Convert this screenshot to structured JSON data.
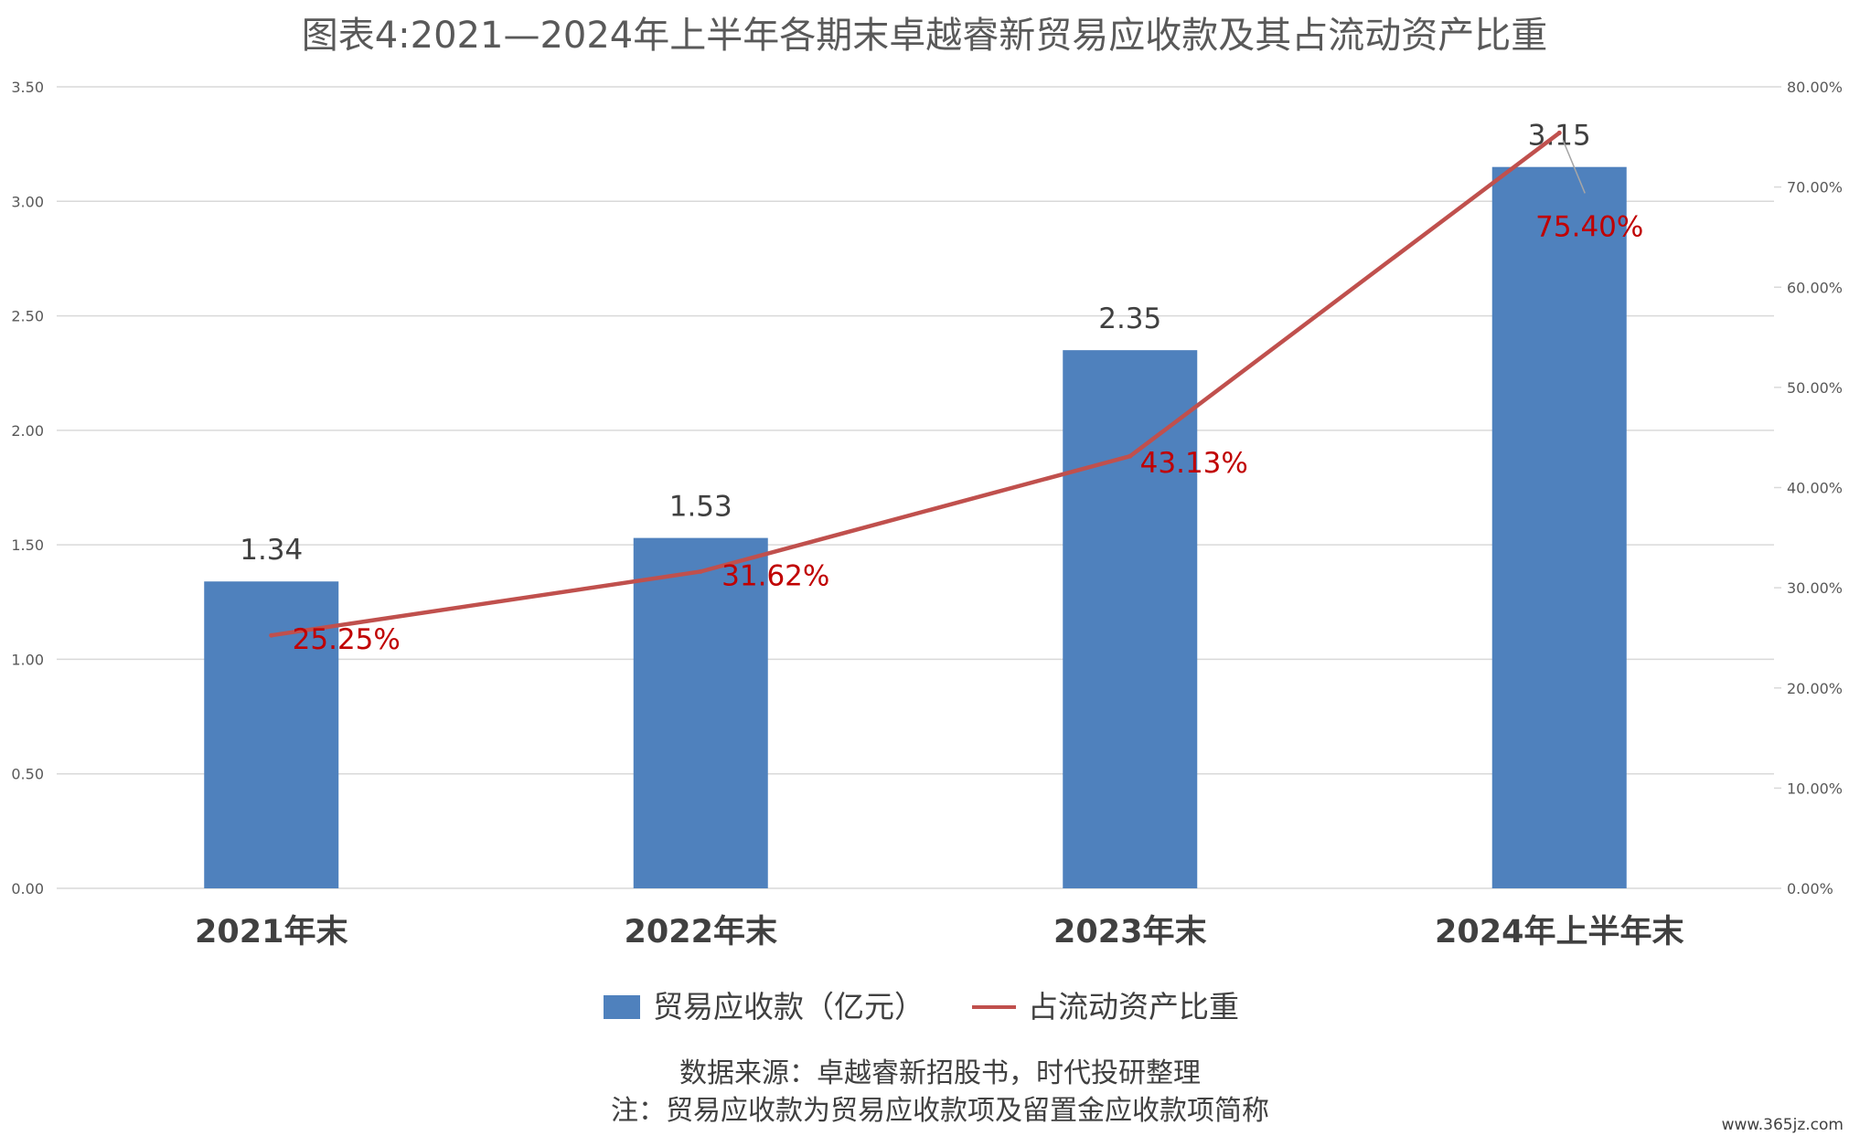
{
  "chart_data": {
    "type": "bar+line",
    "title": "图表4:2021—2024年上半年各期末卓越睿新贸易应收款及其占流动资产比重",
    "categories": [
      "2021年末",
      "2022年末",
      "2023年末",
      "2024年上半年末"
    ],
    "series": [
      {
        "name": "贸易应收款（亿元）",
        "type": "bar",
        "axis": "left",
        "color": "#4f81bd",
        "values": [
          1.34,
          1.53,
          2.35,
          3.15
        ],
        "labels": [
          "1.34",
          "1.53",
          "2.35",
          "3.15"
        ]
      },
      {
        "name": "占流动资产比重",
        "type": "line",
        "axis": "right",
        "color": "#c0504d",
        "values": [
          25.25,
          31.62,
          43.13,
          75.4
        ],
        "labels": [
          "25.25%",
          "31.62%",
          "43.13%",
          "75.40%"
        ]
      }
    ],
    "y_left": {
      "ylim": [
        0,
        3.5
      ],
      "ticks": [
        "0.00",
        "0.50",
        "1.00",
        "1.50",
        "2.00",
        "2.50",
        "3.00",
        "3.50"
      ]
    },
    "y_right": {
      "ylim": [
        0,
        80
      ],
      "ticks": [
        "0.00%",
        "10.00%",
        "20.00%",
        "30.00%",
        "40.00%",
        "50.00%",
        "60.00%",
        "70.00%",
        "80.00%"
      ]
    },
    "grid": true,
    "legend_position": "bottom",
    "xlabel": "",
    "ylabel": ""
  },
  "footer": {
    "source": "数据来源：卓越睿新招股书，时代投研整理",
    "note": "注：贸易应收款为贸易应收款项及留置金应收款项简称"
  },
  "watermark": "www.365jz.com",
  "colors": {
    "bar": "#4f81bd",
    "line": "#c0504d",
    "line_label": "#c00000",
    "grid": "#d9d9d9",
    "text": "#404040"
  }
}
